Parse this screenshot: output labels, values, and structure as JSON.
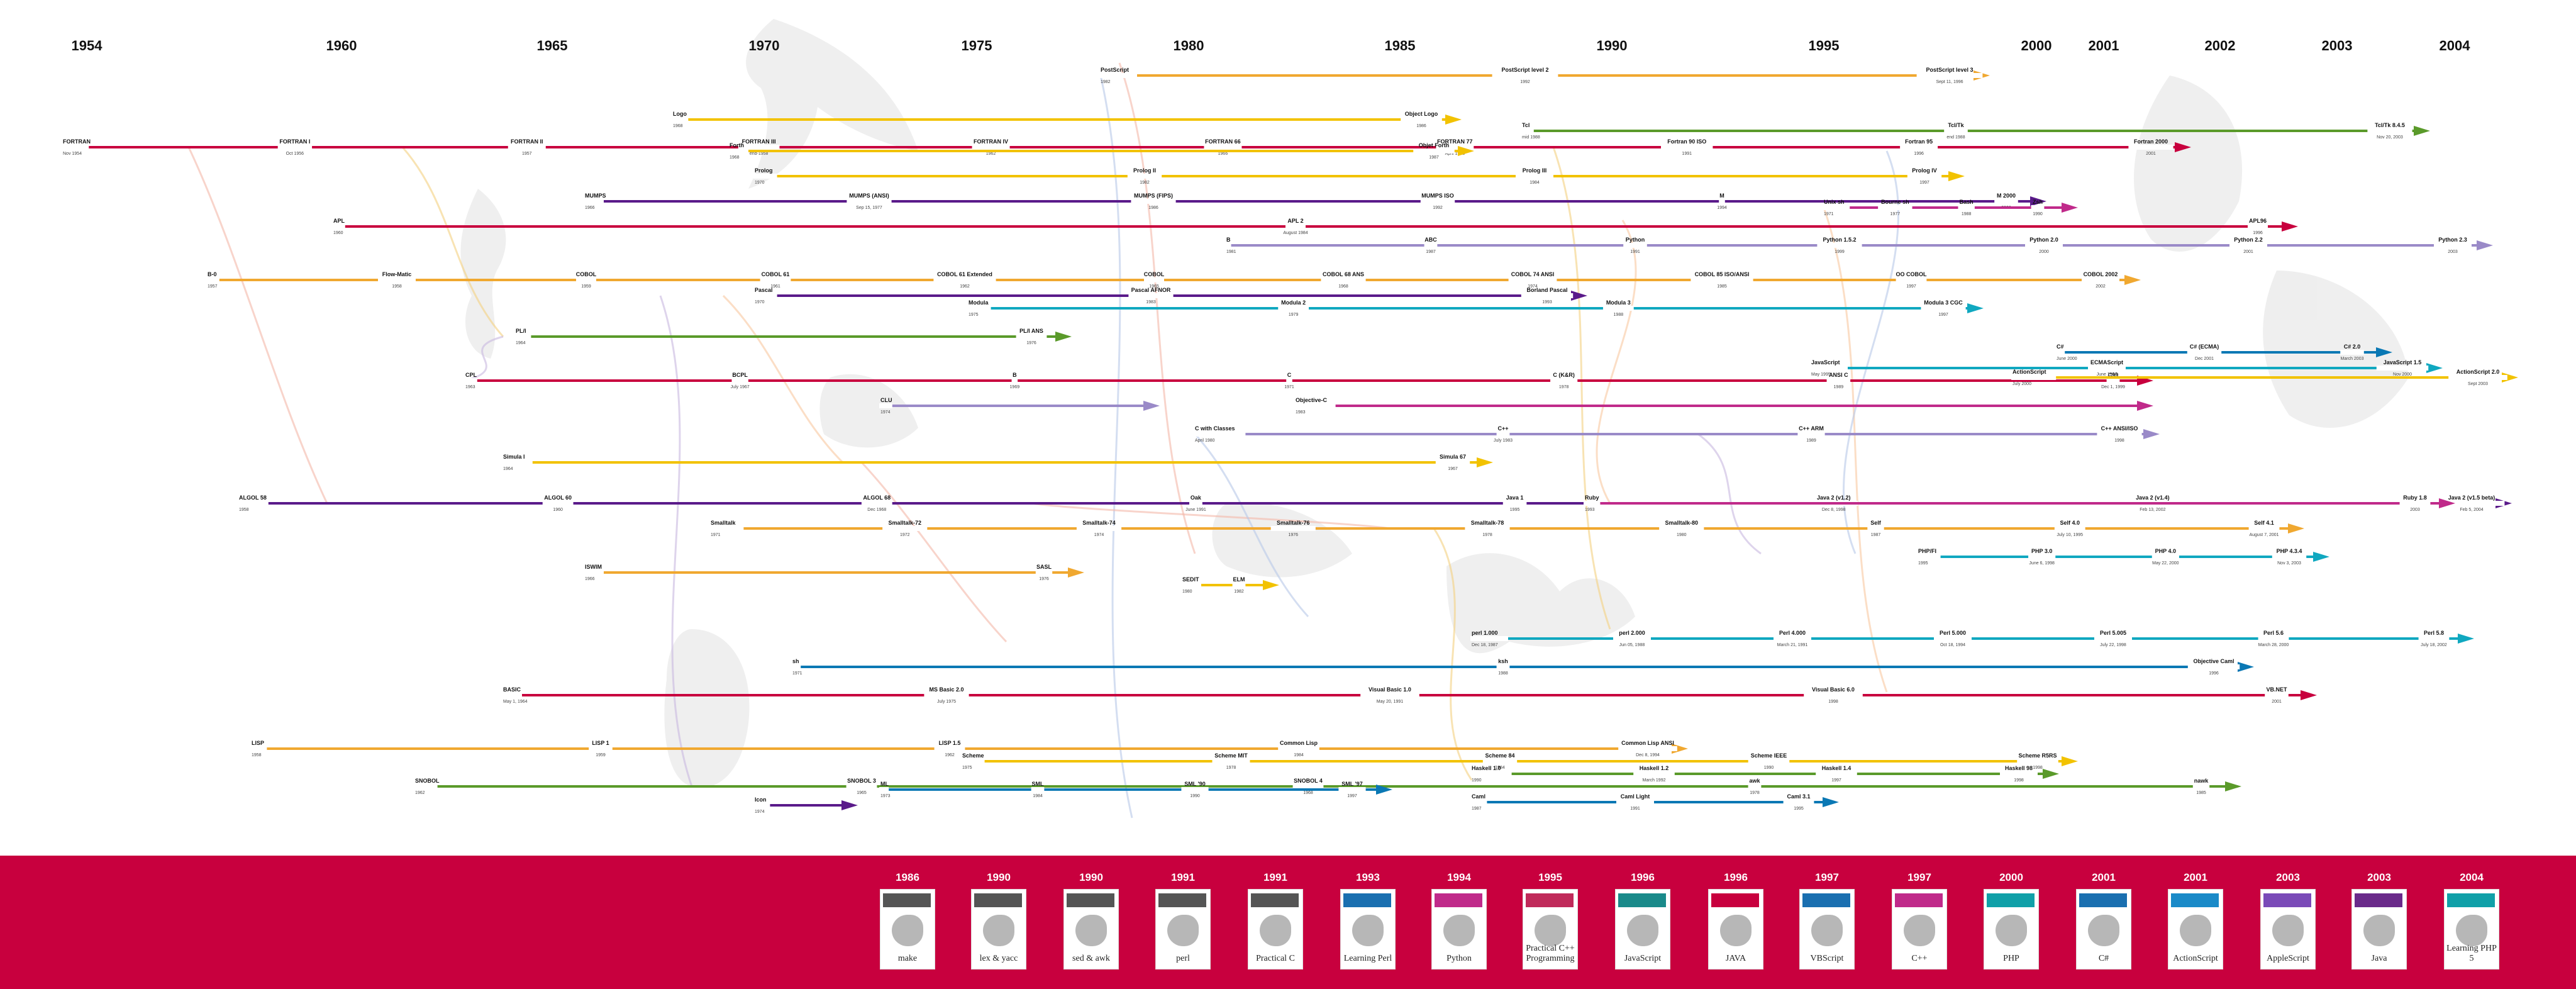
{
  "years": [
    "1954",
    "1960",
    "1965",
    "1970",
    "1975",
    "1980",
    "1985",
    "1990",
    "1995",
    "2000",
    "2001",
    "2002",
    "2003",
    "2004"
  ],
  "colors": {
    "red": "#c8003e",
    "orange": "#f0a830",
    "yellow": "#f2c200",
    "purple": "#5a1a8a",
    "blue": "#0a78b4",
    "teal": "#10a8c0",
    "green": "#5a9a2a",
    "magenta": "#c02a8a",
    "lavender": "#9a8ac8",
    "band": "#c8003e"
  },
  "lines": [
    {
      "color": "red",
      "nodes": [
        {
          "t": "FORTRAN",
          "s": "Nov 1954"
        },
        {
          "t": "FORTRAN I",
          "s": "Oct 1956"
        },
        {
          "t": "FORTRAN II",
          "s": "1957"
        },
        {
          "t": "FORTRAN III",
          "s": "end-1958"
        },
        {
          "t": "FORTRAN IV",
          "s": "1962"
        },
        {
          "t": "FORTRAN 66",
          "s": "1966"
        },
        {
          "t": "FORTRAN 77",
          "s": "April 1978"
        },
        {
          "t": "Fortran 90 ISO",
          "s": "1991"
        },
        {
          "t": "Fortran 95",
          "s": "1996"
        },
        {
          "t": "Fortran 2000",
          "s": "2001"
        }
      ]
    },
    {
      "color": "yellow",
      "nodes": [
        {
          "t": "Forth",
          "s": "1968"
        },
        {
          "t": "Objet Forth",
          "s": "1987"
        }
      ]
    },
    {
      "color": "yellow",
      "nodes": [
        {
          "t": "Logo",
          "s": "1968"
        },
        {
          "t": "Object Logo",
          "s": "1986"
        }
      ]
    },
    {
      "color": "yellow",
      "nodes": [
        {
          "t": "Prolog",
          "s": "1970"
        },
        {
          "t": "Prolog II",
          "s": "1982"
        },
        {
          "t": "Prolog III",
          "s": "1984"
        },
        {
          "t": "Prolog IV",
          "s": "1997"
        }
      ]
    },
    {
      "color": "purple",
      "nodes": [
        {
          "t": "MUMPS",
          "s": "1966"
        },
        {
          "t": "MUMPS (ANSI)",
          "s": "Sep 15, 1977"
        },
        {
          "t": "MUMPS (FIPS)",
          "s": "1986"
        },
        {
          "t": "MUMPS ISO",
          "s": "1992"
        },
        {
          "t": "M",
          "s": "1994"
        },
        {
          "t": "M 2000",
          "s": "2000"
        }
      ]
    },
    {
      "color": "red",
      "nodes": [
        {
          "t": "APL",
          "s": "1960"
        },
        {
          "t": "APL 2",
          "s": "August 1984"
        },
        {
          "t": "APL96",
          "s": "1996"
        }
      ]
    },
    {
      "color": "lavender",
      "nodes": [
        {
          "t": "B",
          "s": "1981"
        },
        {
          "t": "ABC",
          "s": "1987"
        },
        {
          "t": "Python",
          "s": "1991"
        },
        {
          "t": "Python 1.5.2",
          "s": "1999"
        },
        {
          "t": "Python 2.0",
          "s": "2000"
        },
        {
          "t": "Python 2.2",
          "s": "2001"
        },
        {
          "t": "Python 2.3",
          "s": "2003"
        }
      ]
    },
    {
      "color": "orange",
      "nodes": [
        {
          "t": "B-0",
          "s": "1957"
        },
        {
          "t": "Flow-Matic",
          "s": "1958"
        },
        {
          "t": "COBOL",
          "s": "1959"
        },
        {
          "t": "COBOL 61",
          "s": "1961"
        },
        {
          "t": "COBOL 61 Extended",
          "s": "1962"
        },
        {
          "t": "COBOL",
          "s": "1965"
        },
        {
          "t": "COBOL 68 ANS",
          "s": "1968"
        },
        {
          "t": "COBOL 74 ANSI",
          "s": "1974"
        },
        {
          "t": "COBOL 85 ISO/ANSI",
          "s": "1985"
        },
        {
          "t": "OO COBOL",
          "s": "1997"
        },
        {
          "t": "COBOL 2002",
          "s": "2002"
        }
      ]
    },
    {
      "color": "purple",
      "nodes": [
        {
          "t": "Pascal",
          "s": "1970"
        },
        {
          "t": "Pascal AFNOR",
          "s": "1983"
        },
        {
          "t": "Borland Pascal",
          "s": "1993"
        }
      ]
    },
    {
      "color": "teal",
      "nodes": [
        {
          "t": "Modula",
          "s": "1975"
        },
        {
          "t": "Modula 2",
          "s": "1979"
        },
        {
          "t": "Modula 3",
          "s": "1988"
        },
        {
          "t": "Modula 3 CGC",
          "s": "1997"
        }
      ]
    },
    {
      "color": "green",
      "nodes": [
        {
          "t": "PL/I",
          "s": "1964"
        },
        {
          "t": "PL/I ANS",
          "s": "1976"
        }
      ]
    },
    {
      "color": "red",
      "nodes": [
        {
          "t": "CPL",
          "s": "1963"
        },
        {
          "t": "BCPL",
          "s": "July 1967"
        },
        {
          "t": "B",
          "s": "1969"
        },
        {
          "t": "C",
          "s": "1971"
        },
        {
          "t": "C (K&R)",
          "s": "1978"
        },
        {
          "t": "ANSI C",
          "s": "1989"
        },
        {
          "t": "C99",
          "s": "Dec 1, 1999"
        }
      ]
    },
    {
      "color": "lavender",
      "nodes": [
        {
          "t": "CLU",
          "s": "1974"
        }
      ]
    },
    {
      "color": "magenta",
      "nodes": [
        {
          "t": "Objective-C",
          "s": "1983"
        }
      ]
    },
    {
      "color": "lavender",
      "nodes": [
        {
          "t": "C with Classes",
          "s": "April 1980"
        },
        {
          "t": "C++",
          "s": "July 1983"
        },
        {
          "t": "C++ ARM",
          "s": "1989"
        },
        {
          "t": "C++ ANSI/ISO",
          "s": "1998"
        }
      ]
    },
    {
      "color": "yellow",
      "nodes": [
        {
          "t": "Simula I",
          "s": "1964"
        },
        {
          "t": "Simula 67",
          "s": "1967"
        }
      ]
    },
    {
      "color": "purple",
      "nodes": [
        {
          "t": "ALGOL 58",
          "s": "1958"
        },
        {
          "t": "ALGOL 60",
          "s": "1960"
        },
        {
          "t": "ALGOL 68",
          "s": "Dec 1968"
        },
        {
          "t": "Oak",
          "s": "June 1991"
        },
        {
          "t": "Java 1",
          "s": "1995"
        },
        {
          "t": "Java 2 (v1.2)",
          "s": "Dec 8, 1998"
        },
        {
          "t": "Java 2 (v1.4)",
          "s": "Feb 13, 2002"
        },
        {
          "t": "Java 2 (v1.5 beta)",
          "s": "Feb 5, 2004"
        }
      ]
    },
    {
      "color": "orange",
      "nodes": [
        {
          "t": "Smalltalk",
          "s": "1971"
        },
        {
          "t": "Smalltalk-72",
          "s": "1972"
        },
        {
          "t": "Smalltalk-74",
          "s": "1974"
        },
        {
          "t": "Smalltalk-76",
          "s": "1976"
        },
        {
          "t": "Smalltalk-78",
          "s": "1978"
        },
        {
          "t": "Smalltalk-80",
          "s": "1980"
        },
        {
          "t": "Self",
          "s": "1987"
        },
        {
          "t": "Self 4.0",
          "s": "July 10, 1995"
        },
        {
          "t": "Self 4.1",
          "s": "August 7, 2001"
        }
      ]
    },
    {
      "color": "orange",
      "nodes": [
        {
          "t": "ISWIM",
          "s": "1966"
        },
        {
          "t": "SASL",
          "s": "1976"
        }
      ]
    },
    {
      "color": "yellow",
      "nodes": [
        {
          "t": "SEDIT",
          "s": "1980"
        },
        {
          "t": "ELM",
          "s": "1982"
        }
      ]
    },
    {
      "color": "green",
      "nodes": [
        {
          "t": "SNOBOL",
          "s": "1962"
        },
        {
          "t": "SNOBOL 3",
          "s": "1965"
        },
        {
          "t": "SNOBOL 4",
          "s": "1968"
        },
        {
          "t": "awk",
          "s": "1978"
        },
        {
          "t": "nawk",
          "s": "1985"
        }
      ]
    },
    {
      "color": "teal",
      "nodes": [
        {
          "t": "perl 1.000",
          "s": "Dec 18, 1987"
        },
        {
          "t": "perl 2.000",
          "s": "Jun 05, 1988"
        },
        {
          "t": "Perl 4.000",
          "s": "March 21, 1991"
        },
        {
          "t": "Perl 5.000",
          "s": "Oct 18, 1994"
        },
        {
          "t": "Perl 5.005",
          "s": "July 22, 1998"
        },
        {
          "t": "Perl 5.6",
          "s": "March 28, 2000"
        },
        {
          "t": "Perl 5.8",
          "s": "July 18, 2002"
        }
      ]
    },
    {
      "color": "blue",
      "nodes": [
        {
          "t": "sh",
          "s": "1971"
        },
        {
          "t": "ksh",
          "s": "1988"
        },
        {
          "t": "Objective Caml",
          "s": "1996"
        }
      ]
    },
    {
      "color": "red",
      "nodes": [
        {
          "t": "BASIC",
          "s": "May 1, 1964"
        },
        {
          "t": "MS Basic 2.0",
          "s": "July 1975"
        },
        {
          "t": "Visual Basic 1.0",
          "s": "May 20, 1991"
        },
        {
          "t": "Visual Basic 6.0",
          "s": "1998"
        },
        {
          "t": "VB.NET",
          "s": "2001"
        }
      ]
    },
    {
      "color": "orange",
      "nodes": [
        {
          "t": "LISP",
          "s": "1958"
        },
        {
          "t": "LISP 1",
          "s": "1959"
        },
        {
          "t": "LISP 1.5",
          "s": "1962"
        },
        {
          "t": "Common Lisp",
          "s": "1984"
        },
        {
          "t": "Common Lisp ANSI",
          "s": "Dec 8, 1994"
        }
      ]
    },
    {
      "color": "yellow",
      "nodes": [
        {
          "t": "Scheme",
          "s": "1975"
        },
        {
          "t": "Scheme MIT",
          "s": "1978"
        },
        {
          "t": "Scheme 84",
          "s": "1984"
        },
        {
          "t": "Scheme IEEE",
          "s": "1990"
        },
        {
          "t": "Scheme R5RS",
          "s": "1998"
        }
      ]
    },
    {
      "color": "green",
      "nodes": [
        {
          "t": "Haskell 1.0",
          "s": "1990"
        },
        {
          "t": "Haskell 1.2",
          "s": "March 1992"
        },
        {
          "t": "Haskell 1.4",
          "s": "1997"
        },
        {
          "t": "Haskell 98",
          "s": "1998"
        }
      ]
    },
    {
      "color": "blue",
      "nodes": [
        {
          "t": "ML",
          "s": "1973"
        },
        {
          "t": "SML",
          "s": "1984"
        },
        {
          "t": "SML '90",
          "s": "1990"
        },
        {
          "t": "SML '97",
          "s": "1997"
        }
      ]
    },
    {
      "color": "blue",
      "nodes": [
        {
          "t": "Caml",
          "s": "1987"
        },
        {
          "t": "Caml Light",
          "s": "1991"
        },
        {
          "t": "Caml 3.1",
          "s": "1995"
        }
      ]
    },
    {
      "color": "purple",
      "nodes": [
        {
          "t": "Icon",
          "s": "1974"
        }
      ]
    },
    {
      "color": "magenta",
      "nodes": [
        {
          "t": "Ruby",
          "s": "1993"
        },
        {
          "t": "Ruby 1.8",
          "s": "2003"
        }
      ]
    },
    {
      "color": "teal",
      "nodes": [
        {
          "t": "PHP/FI",
          "s": "1995"
        },
        {
          "t": "PHP 3.0",
          "s": "June 6, 1998"
        },
        {
          "t": "PHP 4.0",
          "s": "May 22, 2000"
        },
        {
          "t": "PHP 4.3.4",
          "s": "Nov 3, 2003"
        }
      ]
    },
    {
      "color": "green",
      "nodes": [
        {
          "t": "Tcl",
          "s": "mid 1988"
        },
        {
          "t": "Tcl/Tk",
          "s": "end 1988"
        },
        {
          "t": "Tcl/Tk 8.4.5",
          "s": "Nov 20, 2003"
        }
      ]
    },
    {
      "color": "orange",
      "nodes": [
        {
          "t": "PostScript",
          "s": "1982"
        },
        {
          "t": "PostScript level 2",
          "s": "1992"
        },
        {
          "t": "PostScript level 3",
          "s": "Sept 11, 1996"
        }
      ]
    },
    {
      "color": "magenta",
      "nodes": [
        {
          "t": "Unix sh",
          "s": "1971"
        },
        {
          "t": "Bourne sh",
          "s": "1977"
        },
        {
          "t": "Bash",
          "s": "1988"
        },
        {
          "t": "Zsh",
          "s": "1990"
        }
      ]
    },
    {
      "color": "teal",
      "nodes": [
        {
          "t": "JavaScript",
          "s": "May 1995"
        },
        {
          "t": "ECMAScript",
          "s": "June 1997"
        },
        {
          "t": "JavaScript 1.5",
          "s": "Nov 2000"
        }
      ]
    },
    {
      "color": "yellow",
      "nodes": [
        {
          "t": "ActionScript",
          "s": "July 2000"
        },
        {
          "t": "ActionScript 2.0",
          "s": "Sept 2003"
        }
      ]
    },
    {
      "color": "blue",
      "nodes": [
        {
          "t": "C#",
          "s": "June 2000"
        },
        {
          "t": "C# (ECMA)",
          "s": "Dec 2001"
        },
        {
          "t": "C# 2.0",
          "s": "March 2003"
        }
      ]
    }
  ],
  "books": [
    {
      "year": "1986",
      "title": "make",
      "accent": "#555555"
    },
    {
      "year": "1990",
      "title": "lex & yacc",
      "accent": "#555555"
    },
    {
      "year": "1990",
      "title": "sed & awk",
      "accent": "#555555"
    },
    {
      "year": "1991",
      "title": "perl",
      "accent": "#555555"
    },
    {
      "year": "1991",
      "title": "Practical C",
      "accent": "#555555"
    },
    {
      "year": "1993",
      "title": "Learning Perl",
      "accent": "#1a6fb0"
    },
    {
      "year": "1994",
      "title": "Python",
      "accent": "#c02a8a"
    },
    {
      "year": "1995",
      "title": "Practical C++ Programming",
      "accent": "#c02a5a"
    },
    {
      "year": "1996",
      "title": "JavaScript",
      "accent": "#1a8a8a"
    },
    {
      "year": "1996",
      "title": "JAVA",
      "accent": "#c8003e"
    },
    {
      "year": "1997",
      "title": "VBScript",
      "accent": "#1a6fb0"
    },
    {
      "year": "1997",
      "title": "C++",
      "accent": "#c02a8a"
    },
    {
      "year": "2000",
      "title": "PHP",
      "accent": "#10a0a8"
    },
    {
      "year": "2001",
      "title": "C#",
      "accent": "#1a6fb0"
    },
    {
      "year": "2001",
      "title": "ActionScript",
      "accent": "#1a8ac8"
    },
    {
      "year": "2003",
      "title": "AppleScript",
      "accent": "#7a4ab8"
    },
    {
      "year": "2003",
      "title": "Java",
      "accent": "#6a2a8a"
    },
    {
      "year": "2004",
      "title": "Learning PHP 5",
      "accent": "#10a0a8"
    }
  ]
}
